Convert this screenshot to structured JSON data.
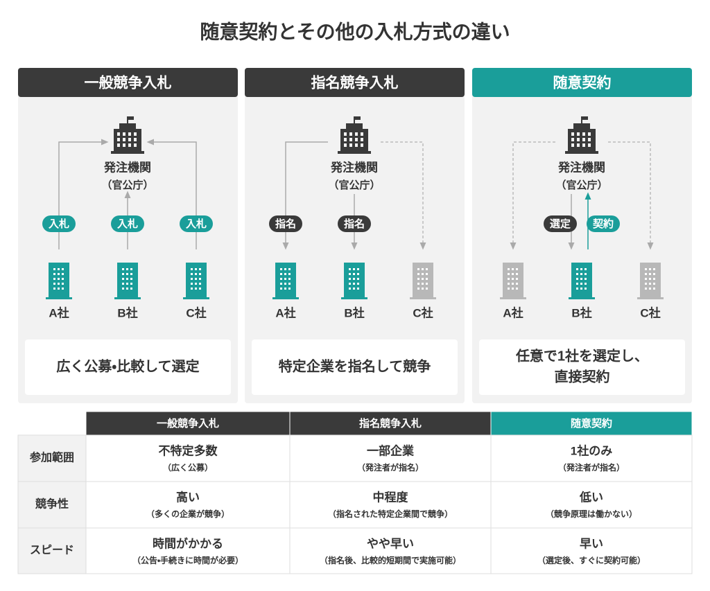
{
  "title": "随意契約とその他の入札方式の違い",
  "panels": [
    {
      "header": "一般競争入札",
      "orderer": "発注機関",
      "orderer_sub": "（官公庁）",
      "labels": [
        "入札",
        "入札",
        "入札"
      ],
      "companies": [
        "A社",
        "B社",
        "C社"
      ],
      "description": [
        "広く公募・比較して選定"
      ]
    },
    {
      "header": "指名競争入札",
      "orderer": "発注機関",
      "orderer_sub": "（官公庁）",
      "labels": [
        "指名",
        "指名"
      ],
      "companies": [
        "A社",
        "B社",
        "C社"
      ],
      "description": [
        "特定企業を指名して競争"
      ]
    },
    {
      "header": "随意契約",
      "orderer": "発注機関",
      "orderer_sub": "（官公庁）",
      "labels": [
        "選定",
        "契約"
      ],
      "companies": [
        "A社",
        "B社",
        "C社"
      ],
      "description": [
        "任意で1社を選定し、",
        "直接契約"
      ]
    }
  ],
  "table": {
    "columns": [
      "一般競争入札",
      "指名競争入札",
      "随意契約"
    ],
    "rows": [
      {
        "label": "参加範囲",
        "cells": [
          {
            "main": "不特定多数",
            "sub": "（広く公募）"
          },
          {
            "main": "一部企業",
            "sub": "（発注者が指名）"
          },
          {
            "main": "1社のみ",
            "sub": "（発注者が指名）"
          }
        ]
      },
      {
        "label": "競争性",
        "cells": [
          {
            "main": "高い",
            "sub": "（多くの企業が競争）"
          },
          {
            "main": "中程度",
            "sub": "（指名された特定企業間で競争）"
          },
          {
            "main": "低い",
            "sub": "（競争原理は働かない）"
          }
        ]
      },
      {
        "label": "スピード",
        "cells": [
          {
            "main": "時間がかかる",
            "sub": "（公告・手続きに時間が必要）"
          },
          {
            "main": "やや早い",
            "sub": "（指名後、比較的短期間で実施可能）"
          },
          {
            "main": "早い",
            "sub": "（選定後、すぐに契約可能）"
          }
        ]
      }
    ]
  }
}
